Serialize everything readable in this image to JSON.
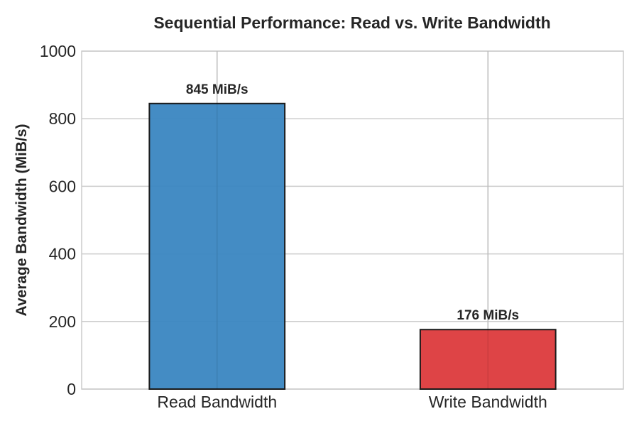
{
  "chart_data": {
    "type": "bar",
    "title": "Sequential Performance: Read vs. Write Bandwidth",
    "xlabel": "",
    "ylabel": "Average Bandwidth (MiB/s)",
    "categories": [
      "Read Bandwidth",
      "Write Bandwidth"
    ],
    "values": [
      845,
      176
    ],
    "data_labels": [
      "845 MiB/s",
      "176 MiB/s"
    ],
    "colors": [
      "#3a86c1",
      "#dc3a3c"
    ],
    "ylim": [
      0,
      1000
    ],
    "yticks": [
      0,
      200,
      400,
      600,
      800,
      1000
    ],
    "grid": true,
    "legend": "none"
  }
}
